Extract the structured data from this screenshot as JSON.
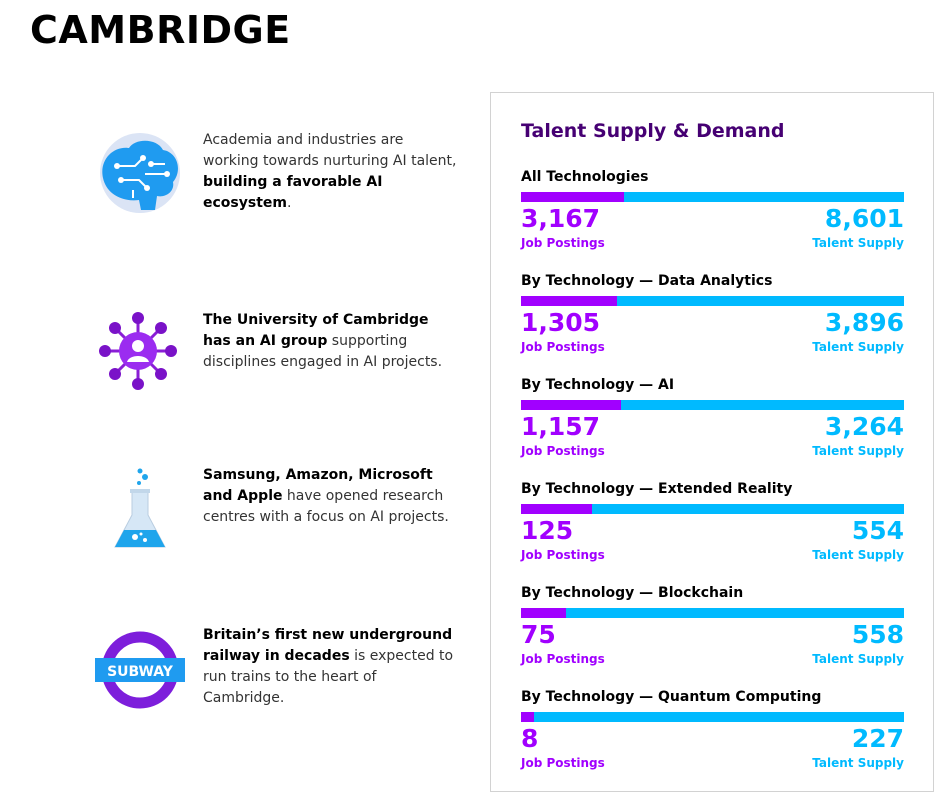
{
  "page": {
    "title": "CAMBRIDGE"
  },
  "features": [
    {
      "icon": "brain-circuit-icon",
      "pre": "Academia and industries are working towards nurturing AI talent, ",
      "bold": "building a favorable AI ecosystem",
      "post": "."
    },
    {
      "icon": "network-person-icon",
      "pre": "",
      "bold": "The University of Cambridge has an AI group",
      "post": " supporting disciplines engaged in AI projects."
    },
    {
      "icon": "flask-icon",
      "pre": "",
      "bold": "Samsung, Amazon, Microsoft and Apple",
      "post": " have opened research centres with a focus on AI projects."
    },
    {
      "icon": "subway-roundel-icon",
      "pre": "",
      "bold": "Britain’s first new underground railway in decades",
      "post": " is expected to run trains to the heart of Cambridge.",
      "badge": "SUBWAY"
    }
  ],
  "panel": {
    "title": "Talent Supply & Demand",
    "jobs_label": "Job Postings",
    "supply_label": "Talent Supply",
    "metrics": [
      {
        "label": "All Technologies",
        "jobs": "3,167",
        "supply": "8,601",
        "jobs_value": 3167,
        "supply_value": 8601
      },
      {
        "label": "By Technology — Data Analytics",
        "jobs": "1,305",
        "supply": "3,896",
        "jobs_value": 1305,
        "supply_value": 3896
      },
      {
        "label": "By Technology — AI",
        "jobs": "1,157",
        "supply": "3,264",
        "jobs_value": 1157,
        "supply_value": 3264
      },
      {
        "label": "By Technology — Extended Reality",
        "jobs": "125",
        "supply": "554",
        "jobs_value": 125,
        "supply_value": 554
      },
      {
        "label": "By Technology — Blockchain",
        "jobs": "75",
        "supply": "558",
        "jobs_value": 75,
        "supply_value": 558
      },
      {
        "label": "By Technology — Quantum Computing",
        "jobs": "8",
        "supply": "227",
        "jobs_value": 8,
        "supply_value": 227
      }
    ]
  },
  "colors": {
    "purple": "#a100ff",
    "dark_purple": "#460073",
    "blue": "#00baff"
  }
}
